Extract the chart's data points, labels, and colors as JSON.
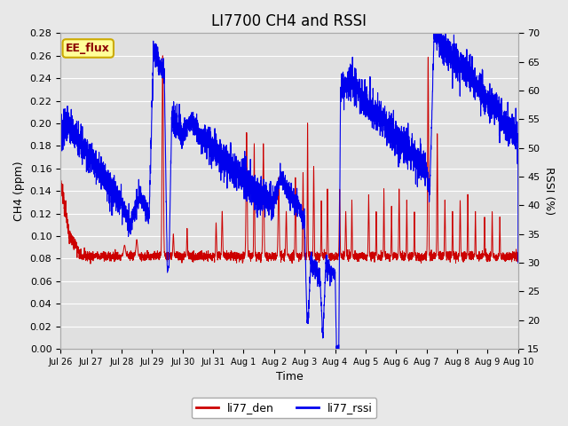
{
  "title": "LI7700 CH4 and RSSI",
  "xlabel": "Time",
  "ylabel_left": "CH4 (ppm)",
  "ylabel_right": "RSSI (%)",
  "legend_label1": "li77_den",
  "legend_label2": "li77_rssi",
  "annotation": "EE_flux",
  "ylim_left": [
    0.0,
    0.28
  ],
  "ylim_right": [
    15,
    70
  ],
  "yticks_left": [
    0.0,
    0.02,
    0.04,
    0.06,
    0.08,
    0.1,
    0.12,
    0.14,
    0.16,
    0.18,
    0.2,
    0.22,
    0.24,
    0.26,
    0.28
  ],
  "yticks_right": [
    15,
    20,
    25,
    30,
    35,
    40,
    45,
    50,
    55,
    60,
    65,
    70
  ],
  "color_red": "#cc0000",
  "color_blue": "#0000ee",
  "background_color": "#e8e8e8",
  "plot_bg_color": "#e0e0e0",
  "annotation_bg": "#ffff99",
  "annotation_border": "#ccaa00",
  "xtick_labels": [
    "Jul 26",
    "Jul 27",
    "Jul 28",
    "Jul 29",
    "Jul 30",
    "Jul 31",
    "Aug 1",
    "Aug 2",
    "Aug 3",
    "Aug 4",
    "Aug 5",
    "Aug 6",
    "Aug 7",
    "Aug 8",
    "Aug 9",
    "Aug 10"
  ],
  "title_fontsize": 12,
  "label_fontsize": 9,
  "tick_fontsize": 8
}
